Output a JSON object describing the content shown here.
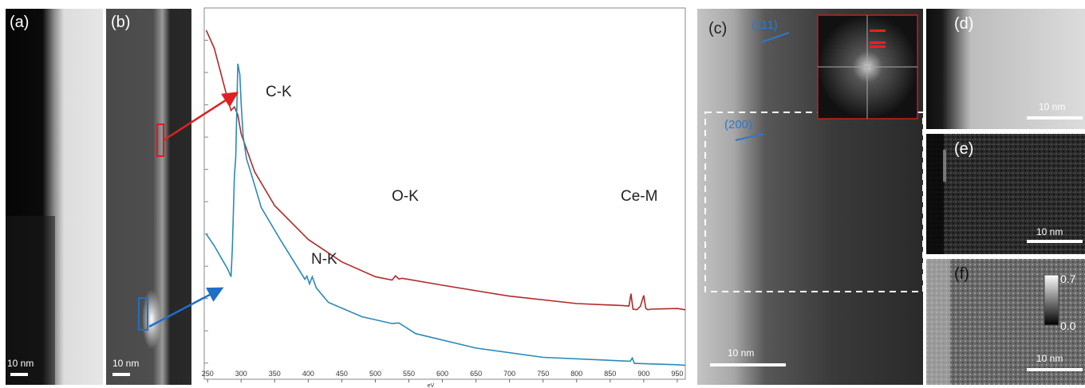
{
  "panels": {
    "a": {
      "label": "(a)",
      "scalebar": "10 nm"
    },
    "b": {
      "label": "(b)",
      "scalebar": "10 nm"
    },
    "c": {
      "label": "(c)",
      "scalebar": "10 nm",
      "planes": [
        "(111)",
        "(200)"
      ]
    },
    "d": {
      "label": "(d)",
      "scalebar": "10 nm"
    },
    "e": {
      "label": "(e)",
      "scalebar": "10 nm"
    },
    "f": {
      "label": "(f)",
      "scalebar": "10 nm",
      "colorbar_max": "0.7",
      "colorbar_min": "0.0"
    }
  },
  "colors": {
    "red_spectrum": "#b02a2a",
    "blue_spectrum": "#2a8ab8",
    "plane_label": "#2f78c8"
  },
  "chart_data": {
    "type": "line",
    "xlabel": "eV",
    "xlim": [
      245,
      962
    ],
    "x_ticks": [
      250,
      300,
      350,
      400,
      450,
      500,
      550,
      600,
      650,
      700,
      750,
      800,
      850,
      900,
      950
    ],
    "ylim": [
      0,
      1
    ],
    "grid": false,
    "annotations": [
      {
        "text": "C-K",
        "x": 330,
        "series": "red"
      },
      {
        "text": "O-K",
        "x": 530,
        "series": "red"
      },
      {
        "text": "Ce-M",
        "x": 890,
        "series": "red"
      },
      {
        "text": "N-K",
        "x": 402,
        "series": "blue"
      }
    ],
    "series": [
      {
        "name": "",
        "color": "#b02a2a",
        "x": [
          248,
          260,
          270,
          280,
          285,
          290,
          295,
          300,
          320,
          350,
          400,
          450,
          500,
          525,
          530,
          535,
          540,
          600,
          700,
          800,
          870,
          878,
          881,
          884,
          890,
          895,
          900,
          903,
          906,
          912,
          950,
          962
        ],
        "y": [
          0.94,
          0.89,
          0.82,
          0.75,
          0.72,
          0.73,
          0.71,
          0.66,
          0.56,
          0.47,
          0.38,
          0.32,
          0.28,
          0.27,
          0.28,
          0.27,
          0.27,
          0.25,
          0.22,
          0.2,
          0.195,
          0.195,
          0.23,
          0.19,
          0.19,
          0.2,
          0.23,
          0.195,
          0.19,
          0.19,
          0.19,
          0.185
        ]
      },
      {
        "name": "",
        "color": "#2a8ab8",
        "x": [
          248,
          260,
          270,
          280,
          285,
          287,
          290,
          292,
          295,
          298,
          300,
          303,
          308,
          315,
          330,
          360,
          395,
          398,
          402,
          406,
          412,
          430,
          480,
          525,
          535,
          560,
          650,
          750,
          880,
          883,
          886,
          950,
          962
        ],
        "y": [
          0.39,
          0.36,
          0.33,
          0.3,
          0.28,
          0.36,
          0.55,
          0.6,
          0.85,
          0.82,
          0.74,
          0.65,
          0.59,
          0.55,
          0.46,
          0.37,
          0.27,
          0.28,
          0.26,
          0.28,
          0.25,
          0.21,
          0.17,
          0.15,
          0.15,
          0.12,
          0.08,
          0.055,
          0.045,
          0.055,
          0.042,
          0.04,
          0.04
        ]
      }
    ]
  }
}
